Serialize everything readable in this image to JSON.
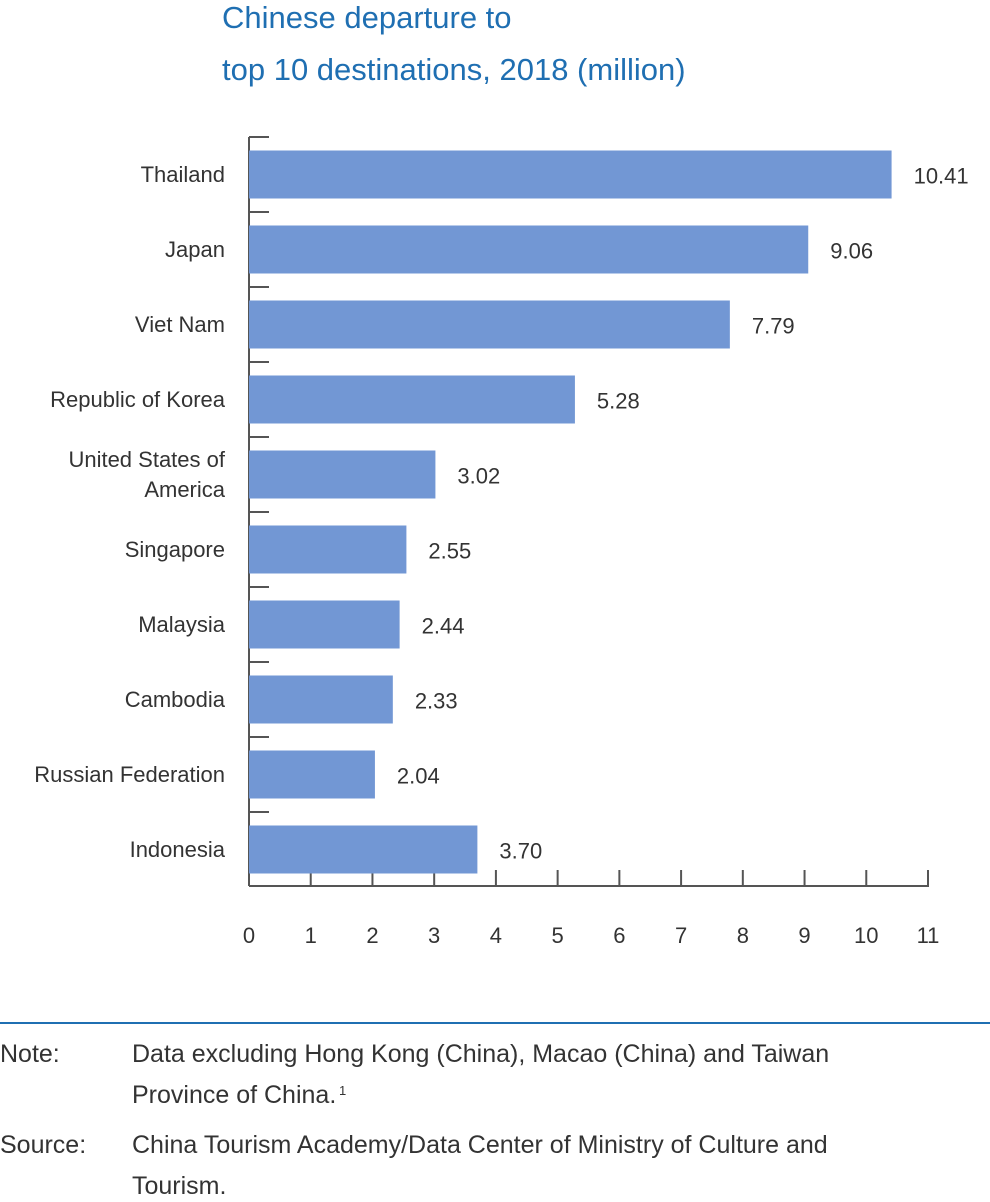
{
  "chart_data": {
    "type": "bar",
    "orientation": "horizontal",
    "title": [
      "Chinese departure to",
      "top 10 destinations, 2018 (million)"
    ],
    "categories": [
      "Thailand",
      "Japan",
      "Viet Nam",
      "Republic of Korea",
      "United States of America",
      "Singapore",
      "Malaysia",
      "Cambodia",
      "Russian Federation",
      "Indonesia"
    ],
    "values": [
      10.41,
      9.06,
      7.79,
      5.28,
      3.02,
      2.55,
      2.44,
      2.33,
      2.04,
      3.7
    ],
    "value_labels": [
      "10.41",
      "9.06",
      "7.79",
      "5.28",
      "3.02",
      "2.55",
      "2.44",
      "2.33",
      "2.04",
      "3.70"
    ],
    "color": "#7297d4",
    "xlim": [
      0,
      11
    ],
    "xticks": [
      0,
      1,
      2,
      3,
      4,
      5,
      6,
      7,
      8,
      9,
      10,
      11
    ]
  },
  "notes": [
    {
      "label": "Note:",
      "lines": [
        "Data excluding Hong Kong (China), Macao (China) and Taiwan",
        "Province of China."
      ],
      "footnote_ref": "1"
    },
    {
      "label": "Source:",
      "lines": [
        "China Tourism Academy/Data Center of Ministry of Culture and",
        "Tourism."
      ]
    }
  ]
}
